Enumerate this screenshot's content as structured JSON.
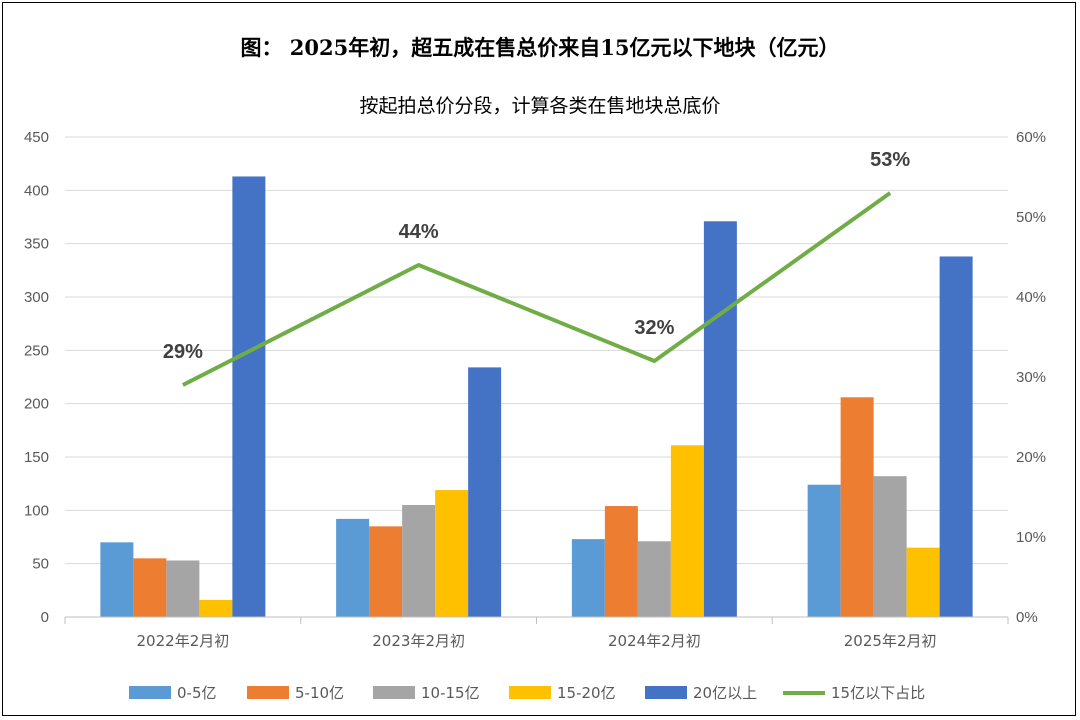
{
  "chart_data": {
    "type": "bar",
    "title": "图：  2025年初，超五成在售总价来自15亿元以下地块（亿元）",
    "subtitle": "按起拍总价分段，计算各类在售地块总底价",
    "categories": [
      "2022年2月初",
      "2023年2月初",
      "2024年2月初",
      "2025年2月初"
    ],
    "series": [
      {
        "name": "0-5亿",
        "color": "#5B9BD5",
        "values": [
          70,
          92,
          73,
          124
        ]
      },
      {
        "name": "5-10亿",
        "color": "#ED7D31",
        "values": [
          55,
          85,
          104,
          206
        ]
      },
      {
        "name": "10-15亿",
        "color": "#A5A5A5",
        "values": [
          53,
          105,
          71,
          132
        ]
      },
      {
        "name": "15-20亿",
        "color": "#FFC000",
        "values": [
          16,
          119,
          161,
          65
        ]
      },
      {
        "name": "20亿以上",
        "color": "#4472C4",
        "values": [
          413,
          234,
          371,
          338
        ]
      }
    ],
    "line_series": {
      "name": "15亿以下占比",
      "color": "#70AD47",
      "axis": "right",
      "values": [
        0.29,
        0.44,
        0.32,
        0.53
      ],
      "labels": [
        "29%",
        "44%",
        "32%",
        "53%"
      ]
    },
    "y_left": {
      "min": 0,
      "max": 450,
      "step": 50,
      "ticks": [
        "0",
        "50",
        "100",
        "150",
        "200",
        "250",
        "300",
        "350",
        "400",
        "450"
      ]
    },
    "y_right": {
      "min": 0,
      "max": 0.6,
      "step": 0.1,
      "ticks": [
        "0%",
        "10%",
        "20%",
        "30%",
        "40%",
        "50%",
        "60%"
      ]
    },
    "legend_position": "bottom",
    "grid": true
  }
}
